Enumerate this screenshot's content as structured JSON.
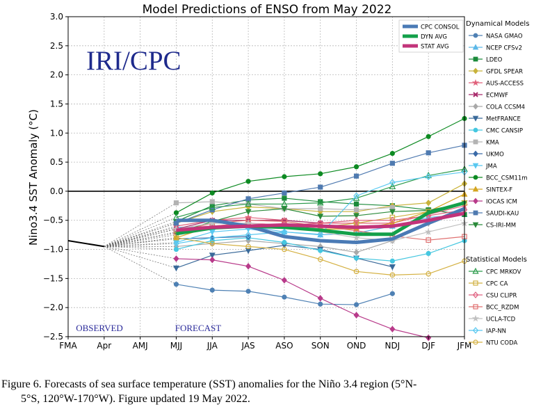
{
  "chart_data": {
    "type": "line",
    "title": "Model Predictions of ENSO from May 2022",
    "ylabel": "Nino3.4 SST Anomaly (°C)",
    "xlabel": "",
    "ylim": [
      -2.5,
      3.0
    ],
    "yticks": [
      "3.0",
      "2.5",
      "2.0",
      "1.5",
      "1.0",
      "0.5",
      "0.0",
      "−0.5",
      "−1.0",
      "−1.5",
      "−2.0",
      "−2.5"
    ],
    "ytick_values": [
      3.0,
      2.5,
      2.0,
      1.5,
      1.0,
      0.5,
      0.0,
      -0.5,
      -1.0,
      -1.5,
      -2.0,
      -2.5
    ],
    "categories": [
      "FMA",
      "Apr",
      "AMJ",
      "MJJ",
      "JJA",
      "JAS",
      "ASO",
      "SON",
      "OND",
      "NDJ",
      "DJF",
      "JFM"
    ],
    "grid": true,
    "watermark": "IRI/CPC",
    "observed_label": "OBSERVED",
    "forecast_label": "FORECAST",
    "observed": [
      -0.85,
      -0.95
    ],
    "summary_series": [
      {
        "name": "CPC CONSOL",
        "color": "#4a7ab5",
        "values": [
          null,
          null,
          null,
          -0.5,
          -0.5,
          -0.6,
          -0.78,
          -0.85,
          -0.88,
          -0.82,
          -0.55,
          -0.3
        ]
      },
      {
        "name": "DYN AVG",
        "color": "#13a04a",
        "values": [
          null,
          null,
          null,
          -0.73,
          -0.63,
          -0.6,
          -0.62,
          -0.67,
          -0.74,
          -0.74,
          -0.37,
          -0.2
        ]
      },
      {
        "name": "STAT AVG",
        "color": "#c2347a",
        "values": [
          null,
          null,
          null,
          -0.67,
          -0.62,
          -0.6,
          -0.58,
          -0.6,
          -0.62,
          -0.6,
          -0.5,
          -0.38
        ]
      }
    ],
    "dynamical_models_title": "Dynamical Models",
    "statistical_models_title": "Statistical Models",
    "series": [
      {
        "group": "dynamical",
        "name": "NASA GMAO",
        "color": "#4f81b4",
        "marker": "circle",
        "values": [
          null,
          null,
          null,
          -1.6,
          -1.7,
          -1.72,
          -1.82,
          -1.94,
          -1.95,
          -1.76,
          null,
          null
        ]
      },
      {
        "group": "dynamical",
        "name": "NCEP CFSv2",
        "color": "#5bb8e8",
        "marker": "triangle-up",
        "values": [
          null,
          null,
          null,
          -0.62,
          -0.62,
          -0.6,
          -0.7,
          -0.75,
          -0.72,
          -0.6,
          -0.45,
          -0.4
        ]
      },
      {
        "group": "dynamical",
        "name": "LDEO",
        "color": "#1a8a3a",
        "marker": "square",
        "values": [
          null,
          null,
          null,
          -0.52,
          -0.25,
          -0.15,
          -0.12,
          -0.18,
          -0.22,
          -0.25,
          -0.32,
          -0.4
        ]
      },
      {
        "group": "dynamical",
        "name": "GFDL SPEAR",
        "color": "#c8b23a",
        "marker": "diamond",
        "values": [
          null,
          null,
          null,
          -0.55,
          -0.35,
          -0.27,
          -0.3,
          -0.35,
          -0.35,
          -0.25,
          -0.2,
          0.13
        ]
      },
      {
        "group": "dynamical",
        "name": "AUS-ACCESS",
        "color": "#e0607a",
        "marker": "star",
        "values": [
          null,
          null,
          null,
          -0.6,
          -0.5,
          -0.45,
          -0.5,
          -0.55,
          -0.55,
          -0.55,
          -0.4,
          -0.25
        ]
      },
      {
        "group": "dynamical",
        "name": "ECMWF",
        "color": "#a8296a",
        "marker": "x",
        "values": [
          null,
          null,
          null,
          -0.65,
          -0.5,
          -0.5,
          -0.5,
          -0.55,
          null,
          null,
          null,
          null
        ]
      },
      {
        "group": "dynamical",
        "name": "COLA CCSM4",
        "color": "#a9a9a9",
        "marker": "diamond",
        "values": [
          null,
          null,
          null,
          -0.95,
          -0.9,
          -0.85,
          -0.9,
          -0.95,
          -1.05,
          -0.85,
          -0.55,
          -0.32
        ]
      },
      {
        "group": "dynamical",
        "name": "MetFRANCE",
        "color": "#3a6a9a",
        "marker": "triangle-down",
        "values": [
          null,
          null,
          null,
          -1.32,
          -1.1,
          -1.02,
          -0.93,
          -1.0,
          -1.15,
          -1.3,
          null,
          null
        ]
      },
      {
        "group": "dynamical",
        "name": "CMC CANSIP",
        "color": "#45c7e0",
        "marker": "circle",
        "values": [
          null,
          null,
          null,
          -1.0,
          -0.85,
          -0.8,
          -0.88,
          -1.02,
          -1.15,
          -1.2,
          -1.07,
          -0.85
        ]
      },
      {
        "group": "dynamical",
        "name": "KMA",
        "color": "#b3b3b3",
        "marker": "square",
        "values": [
          null,
          null,
          null,
          -0.2,
          -0.18,
          -0.22,
          -0.3,
          -0.3,
          -0.32,
          -0.28,
          null,
          null
        ]
      },
      {
        "group": "dynamical",
        "name": "UKMO",
        "color": "#3a6aa8",
        "marker": "diamond",
        "values": [
          null,
          null,
          null,
          -0.82,
          -0.8,
          -0.78,
          null,
          null,
          null,
          null,
          null,
          null
        ]
      },
      {
        "group": "dynamical",
        "name": "JMA",
        "color": "#58c8f0",
        "marker": "triangle-down",
        "values": [
          null,
          null,
          null,
          -0.88,
          -0.7,
          -0.65,
          -0.72,
          null,
          null,
          null,
          null,
          null
        ]
      },
      {
        "group": "dynamical",
        "name": "BCC_CSM11m",
        "color": "#0d8a22",
        "marker": "circle",
        "values": [
          null,
          null,
          null,
          -0.37,
          -0.03,
          0.17,
          0.25,
          0.3,
          0.42,
          0.65,
          0.94,
          1.25
        ]
      },
      {
        "group": "dynamical",
        "name": "SINTEX-F",
        "color": "#d4a520",
        "marker": "triangle-up",
        "values": [
          null,
          null,
          null,
          -0.8,
          -0.6,
          -0.55,
          -0.6,
          -0.65,
          -0.65,
          -0.55,
          -0.35,
          -0.05
        ]
      },
      {
        "group": "dynamical",
        "name": "IOCAS ICM",
        "color": "#b83a8a",
        "marker": "diamond",
        "values": [
          null,
          null,
          null,
          -1.16,
          -1.18,
          -1.29,
          -1.53,
          -1.84,
          -2.13,
          -2.37,
          -2.52,
          null
        ]
      },
      {
        "group": "dynamical",
        "name": "SAUDI-KAU",
        "color": "#4f7ab0",
        "marker": "square",
        "values": [
          null,
          null,
          null,
          -0.55,
          -0.32,
          -0.13,
          -0.03,
          0.07,
          0.26,
          0.48,
          0.66,
          0.79
        ]
      },
      {
        "group": "dynamical",
        "name": "CS-IRI-MM",
        "color": "#2a8a3a",
        "marker": "triangle-down",
        "values": [
          null,
          null,
          null,
          -0.72,
          -0.52,
          -0.35,
          -0.3,
          -0.43,
          -0.42,
          -0.35,
          -0.33,
          -0.2
        ]
      },
      {
        "group": "statistical",
        "name": "CPC MRKOV",
        "color": "#2a9a4a",
        "marker": "triangle-up-open",
        "values": [
          null,
          null,
          null,
          -0.45,
          -0.28,
          -0.22,
          -0.22,
          -0.2,
          -0.12,
          0.08,
          0.27,
          0.38
        ]
      },
      {
        "group": "statistical",
        "name": "CPC CA",
        "color": "#d0b040",
        "marker": "square-open",
        "values": [
          null,
          null,
          null,
          -0.75,
          -0.6,
          -0.58,
          -0.6,
          -0.62,
          -0.55,
          -0.45,
          -0.35,
          -0.2
        ]
      },
      {
        "group": "statistical",
        "name": "CSU CLIPR",
        "color": "#e06080",
        "marker": "diamond-open",
        "values": [
          null,
          null,
          null,
          -0.65,
          -0.6,
          -0.55,
          -0.58,
          -0.55,
          -0.5,
          -0.5,
          -0.42,
          -0.32
        ]
      },
      {
        "group": "statistical",
        "name": "BCC_RZDM",
        "color": "#e07070",
        "marker": "square-open",
        "values": [
          null,
          null,
          null,
          -0.7,
          -0.55,
          -0.5,
          -0.52,
          -0.6,
          -0.68,
          -0.77,
          -0.84,
          -0.78
        ]
      },
      {
        "group": "statistical",
        "name": "UCLA-TCD",
        "color": "#c0c0c0",
        "marker": "star",
        "values": [
          null,
          null,
          null,
          -0.65,
          -0.55,
          -0.55,
          -0.6,
          -0.7,
          -0.8,
          -0.85,
          -0.7,
          -0.55
        ]
      },
      {
        "group": "statistical",
        "name": "IAP-NN",
        "color": "#58c8f0",
        "marker": "diamond-open",
        "values": [
          null,
          null,
          null,
          -0.9,
          -0.8,
          -0.75,
          -0.7,
          -0.74,
          -0.08,
          0.15,
          0.25,
          0.33
        ]
      },
      {
        "group": "statistical",
        "name": "NTU CODA",
        "color": "#d4b040",
        "marker": "circle-open",
        "values": [
          null,
          null,
          null,
          -0.8,
          -0.9,
          -0.95,
          -1.0,
          -1.17,
          -1.38,
          -1.44,
          -1.42,
          -1.2
        ]
      }
    ]
  },
  "caption": {
    "line1": "Figure  6. Forecasts of sea surface temperature (SST) anomalies  for the Niño 3.4 region (5°N-",
    "line2": "5°S, 120°W-170°W).  Figure updated 19 May 2022."
  }
}
